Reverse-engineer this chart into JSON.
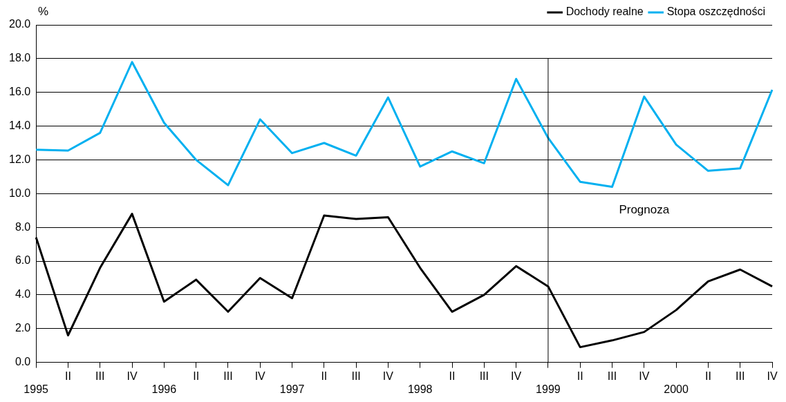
{
  "chart_data": {
    "type": "line",
    "ylabel": "%",
    "categories": [
      "1995",
      "II",
      "III",
      "IV",
      "1996",
      "II",
      "III",
      "IV",
      "1997",
      "II",
      "III",
      "IV",
      "1998",
      "II",
      "III",
      "IV",
      "1999",
      "II",
      "III",
      "IV",
      "2000",
      "II",
      "III",
      "IV"
    ],
    "series": [
      {
        "name": "Dochody realne",
        "color": "#000000",
        "values": [
          7.4,
          1.6,
          5.6,
          8.8,
          3.6,
          4.9,
          3.0,
          5.0,
          3.8,
          8.7,
          8.5,
          8.6,
          5.6,
          3.0,
          4.0,
          5.7,
          4.5,
          0.9,
          1.3,
          1.8,
          3.1,
          4.8,
          5.5,
          4.5
        ]
      },
      {
        "name": "Stopa oszczędności",
        "color": "#00b0f0",
        "values": [
          12.6,
          12.55,
          13.6,
          17.8,
          14.2,
          12.0,
          10.5,
          14.4,
          12.4,
          13.0,
          12.25,
          15.7,
          11.6,
          12.5,
          11.8,
          16.8,
          13.3,
          10.7,
          10.4,
          15.75,
          12.9,
          11.35,
          11.5,
          16.15
        ]
      }
    ],
    "ylim": [
      0,
      20
    ],
    "yticks": [
      {
        "value": 0,
        "label": "0.0"
      },
      {
        "value": 2,
        "label": "2.0"
      },
      {
        "value": 4,
        "label": "4.0"
      },
      {
        "value": 6,
        "label": "6.0"
      },
      {
        "value": 8,
        "label": "8.0"
      },
      {
        "value": 10,
        "label": "10.0"
      },
      {
        "value": 12,
        "label": "12.0"
      },
      {
        "value": 14,
        "label": "14.0"
      },
      {
        "value": 16,
        "label": "16.0"
      },
      {
        "value": 18,
        "label": "18.0"
      },
      {
        "value": 20,
        "label": "20.0"
      }
    ],
    "ref_lines": [
      {
        "axis": "x",
        "value": "1999",
        "color": "#000000"
      }
    ],
    "annotations": [
      "Prognoza"
    ],
    "grid": "y",
    "legend": "top right",
    "marker": "none",
    "line_style": "solid"
  }
}
